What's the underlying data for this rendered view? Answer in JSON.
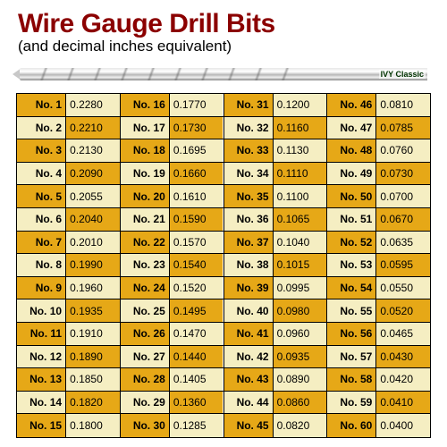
{
  "title": "Wire Gauge Drill Bits",
  "subtitle": "(and decimal inches equivalent)",
  "brand": "IVY Classic",
  "colors": {
    "title_color": "#8b0000",
    "gold": "#e6a817",
    "cream": "#f5eec2",
    "border": "#000000",
    "background": "#ffffff"
  },
  "typography": {
    "title_fontsize": 30,
    "title_weight": 900,
    "subtitle_fontsize": 17,
    "cell_fontsize": 12
  },
  "table": {
    "type": "table",
    "rows_per_block": 15,
    "column_blocks": 4,
    "label_prefix": "No. ",
    "data": [
      {
        "n": 1,
        "v": "0.2280"
      },
      {
        "n": 2,
        "v": "0.2210"
      },
      {
        "n": 3,
        "v": "0.2130"
      },
      {
        "n": 4,
        "v": "0.2090"
      },
      {
        "n": 5,
        "v": "0.2055"
      },
      {
        "n": 6,
        "v": "0.2040"
      },
      {
        "n": 7,
        "v": "0.2010"
      },
      {
        "n": 8,
        "v": "0.1990"
      },
      {
        "n": 9,
        "v": "0.1960"
      },
      {
        "n": 10,
        "v": "0.1935"
      },
      {
        "n": 11,
        "v": "0.1910"
      },
      {
        "n": 12,
        "v": "0.1890"
      },
      {
        "n": 13,
        "v": "0.1850"
      },
      {
        "n": 14,
        "v": "0.1820"
      },
      {
        "n": 15,
        "v": "0.1800"
      },
      {
        "n": 16,
        "v": "0.1770"
      },
      {
        "n": 17,
        "v": "0.1730"
      },
      {
        "n": 18,
        "v": "0.1695"
      },
      {
        "n": 19,
        "v": "0.1660"
      },
      {
        "n": 20,
        "v": "0.1610"
      },
      {
        "n": 21,
        "v": "0.1590"
      },
      {
        "n": 22,
        "v": "0.1570"
      },
      {
        "n": 23,
        "v": "0.1540"
      },
      {
        "n": 24,
        "v": "0.1520"
      },
      {
        "n": 25,
        "v": "0.1495"
      },
      {
        "n": 26,
        "v": "0.1470"
      },
      {
        "n": 27,
        "v": "0.1440"
      },
      {
        "n": 28,
        "v": "0.1405"
      },
      {
        "n": 29,
        "v": "0.1360"
      },
      {
        "n": 30,
        "v": "0.1285"
      },
      {
        "n": 31,
        "v": "0.1200"
      },
      {
        "n": 32,
        "v": "0.1160"
      },
      {
        "n": 33,
        "v": "0.1130"
      },
      {
        "n": 34,
        "v": "0.1110"
      },
      {
        "n": 35,
        "v": "0.1100"
      },
      {
        "n": 36,
        "v": "0.1065"
      },
      {
        "n": 37,
        "v": "0.1040"
      },
      {
        "n": 38,
        "v": "0.1015"
      },
      {
        "n": 39,
        "v": "0.0995"
      },
      {
        "n": 40,
        "v": "0.0980"
      },
      {
        "n": 41,
        "v": "0.0960"
      },
      {
        "n": 42,
        "v": "0.0935"
      },
      {
        "n": 43,
        "v": "0.0890"
      },
      {
        "n": 44,
        "v": "0.0860"
      },
      {
        "n": 45,
        "v": "0.0820"
      },
      {
        "n": 46,
        "v": "0.0810"
      },
      {
        "n": 47,
        "v": "0.0785"
      },
      {
        "n": 48,
        "v": "0.0760"
      },
      {
        "n": 49,
        "v": "0.0730"
      },
      {
        "n": 50,
        "v": "0.0700"
      },
      {
        "n": 51,
        "v": "0.0670"
      },
      {
        "n": 52,
        "v": "0.0635"
      },
      {
        "n": 53,
        "v": "0.0595"
      },
      {
        "n": 54,
        "v": "0.0550"
      },
      {
        "n": 55,
        "v": "0.0520"
      },
      {
        "n": 56,
        "v": "0.0465"
      },
      {
        "n": 57,
        "v": "0.0430"
      },
      {
        "n": 58,
        "v": "0.0420"
      },
      {
        "n": 59,
        "v": "0.0410"
      },
      {
        "n": 60,
        "v": "0.0400"
      }
    ]
  }
}
